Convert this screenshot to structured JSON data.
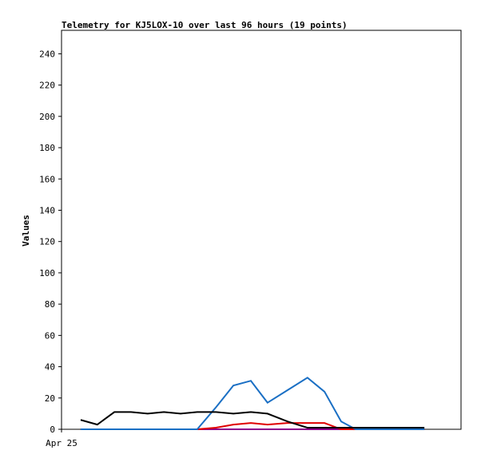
{
  "chart_data": {
    "type": "line",
    "title": "Telemetry for KJ5LOX-10 over last 96 hours (19 points)",
    "y_label": "Values",
    "x": [
      4.6,
      8.6,
      12.7,
      16.7,
      20.7,
      24.6,
      28.6,
      32.6,
      37.1,
      41.3,
      45.5,
      49.5,
      54.3,
      59.1,
      63.2,
      67.2,
      70.7,
      78.9,
      87.2
    ],
    "xlim": [
      0,
      96
    ],
    "xticks": [
      {
        "value": 0,
        "label": "Apr 25"
      }
    ],
    "ylim": [
      0,
      255
    ],
    "yticks": [
      0,
      20,
      40,
      60,
      80,
      100,
      120,
      140,
      160,
      180,
      200,
      220,
      240
    ],
    "grid": false,
    "series": [
      {
        "color": "#8b008b",
        "values": [
          0,
          0,
          0,
          0,
          0,
          0,
          0,
          0,
          0,
          0,
          0,
          0,
          0,
          0,
          0,
          0,
          0,
          0,
          0
        ]
      },
      {
        "color": "#e00000",
        "values": [
          0,
          0,
          0,
          0,
          0,
          0,
          0,
          0,
          1,
          3,
          4,
          3,
          4,
          4,
          4,
          0,
          0,
          0,
          0
        ]
      },
      {
        "color": "#1a6fc4",
        "values": [
          0,
          0,
          0,
          0,
          0,
          0,
          0,
          0,
          14,
          28,
          31,
          17,
          25,
          33,
          24,
          5,
          0,
          0,
          0
        ]
      },
      {
        "color": "#000000",
        "values": [
          6,
          3,
          11,
          11,
          10,
          11,
          10,
          11,
          11,
          10,
          11,
          10,
          5,
          1,
          1,
          1,
          1,
          1,
          1
        ]
      }
    ]
  }
}
